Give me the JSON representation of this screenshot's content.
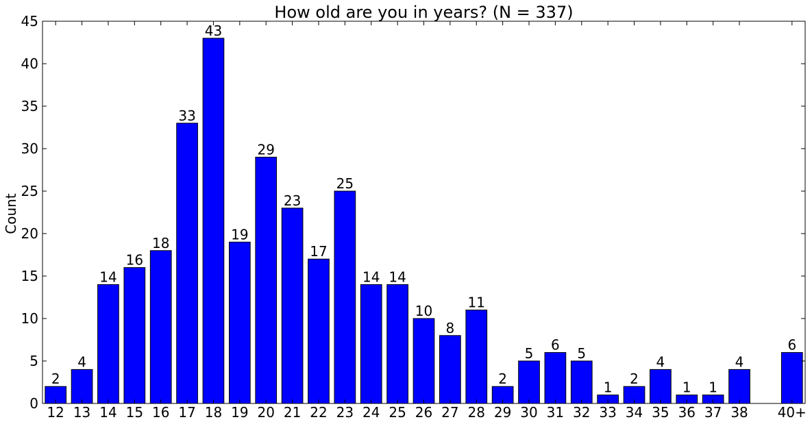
{
  "chart_data": {
    "type": "bar",
    "title": "How old are you in years? (N = 337)",
    "xlabel": "",
    "ylabel": "Count",
    "ylim": [
      0,
      45
    ],
    "yticks": [
      0,
      5,
      10,
      15,
      20,
      25,
      30,
      35,
      40,
      45
    ],
    "grid": false,
    "bar_color": "#0000ff",
    "categories": [
      "12",
      "13",
      "14",
      "15",
      "16",
      "17",
      "18",
      "19",
      "20",
      "21",
      "22",
      "23",
      "24",
      "25",
      "26",
      "27",
      "28",
      "29",
      "30",
      "31",
      "32",
      "33",
      "34",
      "35",
      "36",
      "37",
      "38",
      "40+"
    ],
    "positions": [
      12,
      13,
      14,
      15,
      16,
      17,
      18,
      19,
      20,
      21,
      22,
      23,
      24,
      25,
      26,
      27,
      28,
      29,
      30,
      31,
      32,
      33,
      34,
      35,
      36,
      37,
      38,
      40
    ],
    "values": [
      2,
      4,
      14,
      16,
      18,
      33,
      43,
      19,
      29,
      23,
      17,
      25,
      14,
      14,
      10,
      8,
      11,
      2,
      5,
      6,
      5,
      1,
      2,
      4,
      1,
      1,
      4,
      6
    ]
  }
}
